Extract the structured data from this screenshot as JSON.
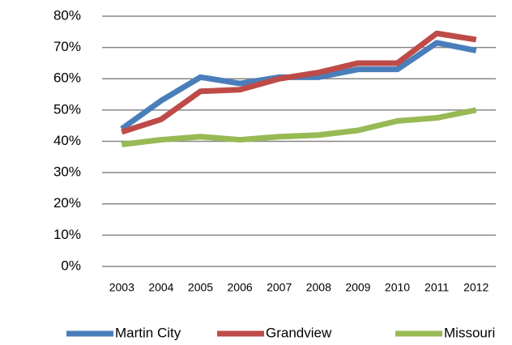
{
  "chart_data": {
    "type": "line",
    "categories": [
      "2003",
      "2004",
      "2005",
      "2006",
      "2007",
      "2008",
      "2009",
      "2010",
      "2011",
      "2012"
    ],
    "series": [
      {
        "name": "Martin City",
        "color": "#4a7ebb",
        "values": [
          44,
          53,
          60.5,
          58.5,
          60.5,
          60.5,
          63,
          63,
          71.5,
          69
        ]
      },
      {
        "name": "Grandview",
        "color": "#be4b48",
        "values": [
          43,
          47,
          56,
          56.5,
          60,
          62,
          65,
          65,
          74.5,
          72.5
        ]
      },
      {
        "name": "Missouri",
        "color": "#98b954",
        "values": [
          39,
          40.5,
          41.5,
          40.5,
          41.5,
          42,
          43.5,
          46.5,
          47.5,
          50
        ]
      }
    ],
    "ylim": [
      0,
      80
    ],
    "yticks": [
      {
        "value": 0,
        "label": "0%"
      },
      {
        "value": 10,
        "label": "10%"
      },
      {
        "value": 20,
        "label": "20%"
      },
      {
        "value": 30,
        "label": "30%"
      },
      {
        "value": 40,
        "label": "40%"
      },
      {
        "value": 50,
        "label": "50%"
      },
      {
        "value": 60,
        "label": "60%"
      },
      {
        "value": 70,
        "label": "70%"
      },
      {
        "value": 80,
        "label": "80%"
      }
    ],
    "grid": true,
    "legend": "bottom"
  }
}
